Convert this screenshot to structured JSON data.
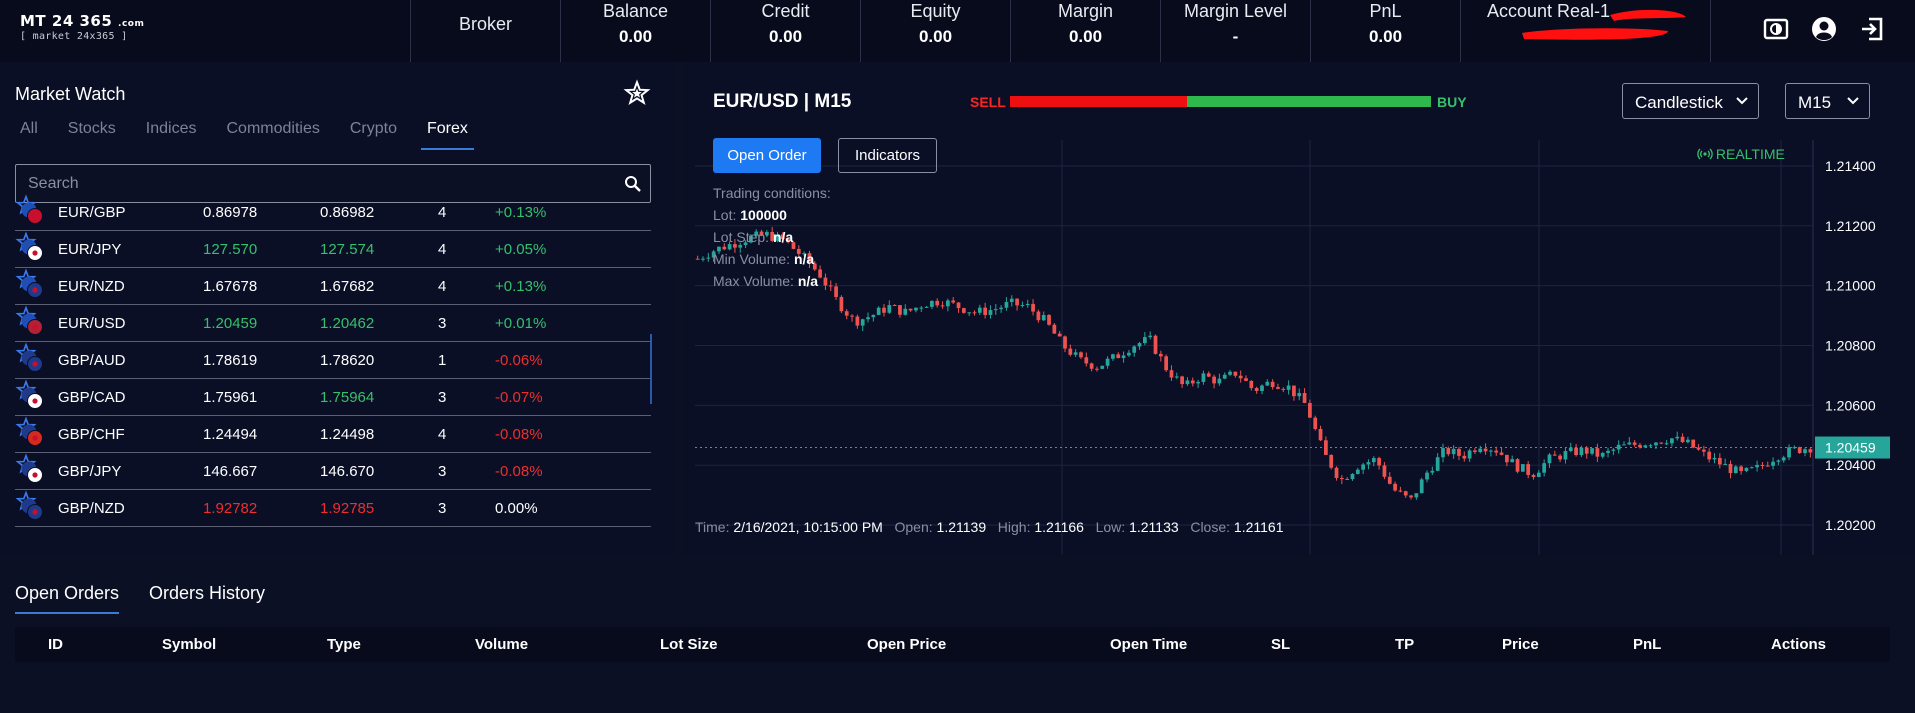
{
  "logo": {
    "main": "MT 24 365",
    "com": ".com",
    "sub": "[ market 24x365 ]"
  },
  "header": {
    "broker_label": "Broker",
    "stats": [
      {
        "label": "Balance",
        "value": "0.00"
      },
      {
        "label": "Credit",
        "value": "0.00"
      },
      {
        "label": "Equity",
        "value": "0.00"
      },
      {
        "label": "Margin",
        "value": "0.00"
      },
      {
        "label": "Margin Level",
        "value": "-"
      },
      {
        "label": "PnL",
        "value": "0.00"
      }
    ],
    "account_label": "Account Real-1",
    "icons": [
      "screen-toggle-icon",
      "user-icon",
      "logout-icon"
    ]
  },
  "market_watch": {
    "title": "Market Watch",
    "tabs": [
      "All",
      "Stocks",
      "Indices",
      "Commodities",
      "Crypto",
      "Forex"
    ],
    "active_tab": "Forex",
    "search_placeholder": "Search",
    "rows": [
      {
        "symbol": "EUR/GBP",
        "bid": "0.86978",
        "ask": "0.86982",
        "spread": "4",
        "change": "+0.13%",
        "bid_color": "white",
        "ask_color": "white",
        "change_color": "green",
        "partial": true
      },
      {
        "symbol": "EUR/JPY",
        "bid": "127.570",
        "ask": "127.574",
        "spread": "4",
        "change": "+0.05%",
        "bid_color": "green",
        "ask_color": "green",
        "change_color": "green"
      },
      {
        "symbol": "EUR/NZD",
        "bid": "1.67678",
        "ask": "1.67682",
        "spread": "4",
        "change": "+0.13%",
        "bid_color": "white",
        "ask_color": "white",
        "change_color": "green"
      },
      {
        "symbol": "EUR/USD",
        "bid": "1.20459",
        "ask": "1.20462",
        "spread": "3",
        "change": "+0.01%",
        "bid_color": "green",
        "ask_color": "green",
        "change_color": "green"
      },
      {
        "symbol": "GBP/AUD",
        "bid": "1.78619",
        "ask": "1.78620",
        "spread": "1",
        "change": "-0.06%",
        "bid_color": "white",
        "ask_color": "white",
        "change_color": "red"
      },
      {
        "symbol": "GBP/CAD",
        "bid": "1.75961",
        "ask": "1.75964",
        "spread": "3",
        "change": "-0.07%",
        "bid_color": "white",
        "ask_color": "green",
        "change_color": "red"
      },
      {
        "symbol": "GBP/CHF",
        "bid": "1.24494",
        "ask": "1.24498",
        "spread": "4",
        "change": "-0.08%",
        "bid_color": "white",
        "ask_color": "white",
        "change_color": "red"
      },
      {
        "symbol": "GBP/JPY",
        "bid": "146.667",
        "ask": "146.670",
        "spread": "3",
        "change": "-0.08%",
        "bid_color": "white",
        "ask_color": "white",
        "change_color": "red"
      },
      {
        "symbol": "GBP/NZD",
        "bid": "1.92782",
        "ask": "1.92785",
        "spread": "3",
        "change": "0.00%",
        "bid_color": "red",
        "ask_color": "red",
        "change_color": "white"
      }
    ]
  },
  "chart_panel": {
    "pair": "EUR/USD | M15",
    "sell_label": "SELL",
    "buy_label": "BUY",
    "sell_fraction": 0.42,
    "chart_type": "Candlestick",
    "timeframe": "M15",
    "open_order_label": "Open Order",
    "indicators_label": "Indicators",
    "realtime_label": "REALTIME",
    "conditions": {
      "title": "Trading conditions:",
      "lot_label": "Lot:",
      "lot_value": "100000",
      "lot_step_label": "Lot Step:",
      "lot_step_value": "n/a",
      "min_volume_label": "Min Volume:",
      "min_volume_value": "n/a",
      "max_volume_label": "Max Volume:",
      "max_volume_value": "n/a"
    },
    "ohlc": {
      "time_label": "Time:",
      "time": "2/16/2021, 10:15:00 PM",
      "open_label": "Open:",
      "open": "1.21139",
      "high_label": "High:",
      "high": "1.21166",
      "low_label": "Low:",
      "low": "1.21133",
      "close_label": "Close:",
      "close": "1.21161"
    }
  },
  "chart_data": {
    "type": "candlestick",
    "y_ticks": [
      "1.21400",
      "1.21200",
      "1.21000",
      "1.20800",
      "1.20600",
      "1.20400",
      "1.20200"
    ],
    "ylim": [
      1.2015,
      1.2147
    ],
    "current_price": "1.20459",
    "up_color": "#26a69a",
    "down_color": "#ef5350",
    "close_path": [
      1.2109,
      1.2112,
      1.2114,
      1.2116,
      1.2117,
      1.2115,
      1.211,
      1.2104,
      1.2095,
      1.2088,
      1.209,
      1.2093,
      1.2091,
      1.2094,
      1.2095,
      1.2093,
      1.2091,
      1.2092,
      1.2094,
      1.2093,
      1.2088,
      1.208,
      1.2075,
      1.2073,
      1.2076,
      1.208,
      1.2082,
      1.2072,
      1.2066,
      1.207,
      1.2068,
      1.2071,
      1.2065,
      1.2068,
      1.2066,
      1.206,
      1.2044,
      1.2035,
      1.204,
      1.2042,
      1.2032,
      1.2028,
      1.2038,
      1.2045,
      1.2043,
      1.2047,
      1.2045,
      1.204,
      1.2037,
      1.2042,
      1.2044,
      1.2045,
      1.2043,
      1.2046,
      1.2047,
      1.2048,
      1.2049,
      1.2047,
      1.2043,
      1.204,
      1.2037,
      1.2039,
      1.2043,
      1.2045,
      1.2046
    ]
  },
  "bottom": {
    "tabs": [
      "Open Orders",
      "Orders History"
    ],
    "columns": [
      "ID",
      "Symbol",
      "Type",
      "Volume",
      "Lot Size",
      "Open Price",
      "Open Time",
      "SL",
      "TP",
      "Price",
      "PnL",
      "Actions"
    ]
  },
  "colors": {
    "accent": "#1d7af3",
    "green": "#36c06b",
    "red": "#ee2e2e",
    "background": "#0b1025"
  }
}
